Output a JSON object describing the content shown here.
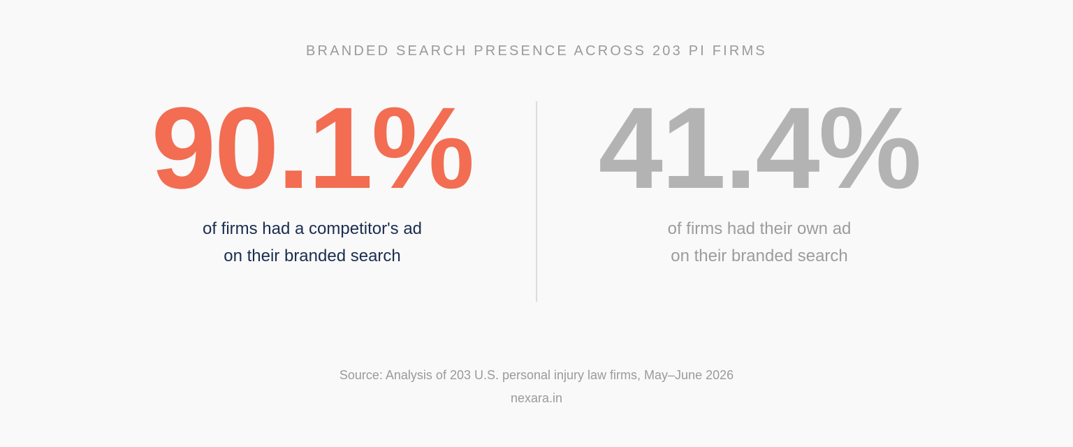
{
  "header": {
    "title": "BRANDED SEARCH PRESENCE ACROSS 203 PI FIRMS"
  },
  "stats": [
    {
      "value": "90.1%",
      "description": [
        "of firms had a competitor's ad",
        "on their branded search"
      ]
    },
    {
      "value": "41.4%",
      "description": [
        "of firms had their own ad",
        "on their branded search"
      ]
    }
  ],
  "footer": {
    "source": "Source: Analysis of 203 U.S. personal injury law firms, May–June 2026",
    "site": "nexara.in"
  }
}
